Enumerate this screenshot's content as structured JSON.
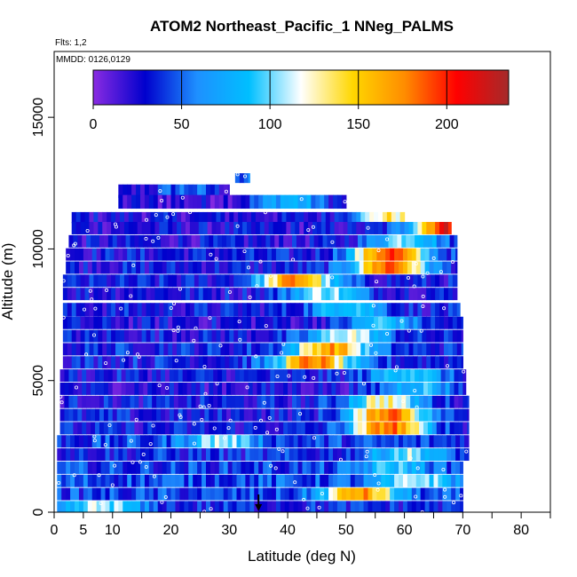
{
  "chart_data": {
    "type": "heatmap",
    "title": "ATOM2 Northeast_Pacific_1 NNeg_PALMS",
    "flights_label": "Flts: 1,2",
    "dates_label": "MMDD: 0126,0129",
    "xlabel": "Latitude (deg N)",
    "ylabel": "Altitude (m)",
    "xlim": [
      0,
      85
    ],
    "ylim": [
      0,
      17500
    ],
    "x_ticks": [
      0,
      5,
      10,
      20,
      30,
      40,
      50,
      60,
      70,
      80
    ],
    "x_minor_ticks": [
      15,
      25,
      35,
      45,
      55,
      65,
      75,
      85
    ],
    "y_ticks": [
      0,
      5000,
      10000,
      15000
    ],
    "colorbar": {
      "range": [
        0,
        235
      ],
      "ticks": [
        0,
        50,
        100,
        150,
        200
      ],
      "stops": [
        "#8a2be2",
        "#0000cd",
        "#1e90ff",
        "#00bfff",
        "#ffffff",
        "#ffd700",
        "#ff8c00",
        "#ff0000",
        "#a52a2a"
      ]
    },
    "bands": [
      {
        "alt": 12700,
        "h": 350,
        "lat": [
          31,
          33.5
        ],
        "peak_lat": 32,
        "base": 20,
        "peak": 45
      },
      {
        "alt": 12200,
        "h": 500,
        "lat": [
          11,
          30
        ],
        "peak_lat": 22,
        "base": 15,
        "peak": 50
      },
      {
        "alt": 11800,
        "h": 500,
        "lat": [
          11,
          50
        ],
        "peak_lat": 40,
        "base": 20,
        "peak": 80
      },
      {
        "alt": 11200,
        "h": 400,
        "lat": [
          3,
          60
        ],
        "peak_lat": 57,
        "base": 25,
        "peak": 135
      },
      {
        "alt": 10800,
        "h": 450,
        "lat": [
          3,
          68
        ],
        "peak_lat": 67,
        "base": 25,
        "peak": 210
      },
      {
        "alt": 10300,
        "h": 450,
        "lat": [
          2.5,
          69
        ],
        "peak_lat": 60,
        "base": 25,
        "peak": 110
      },
      {
        "alt": 9800,
        "h": 450,
        "lat": [
          2,
          69
        ],
        "peak_lat": 57,
        "base": 30,
        "peak": 195
      },
      {
        "alt": 9300,
        "h": 450,
        "lat": [
          2,
          69
        ],
        "peak_lat": 57,
        "base": 30,
        "peak": 190
      },
      {
        "alt": 8800,
        "h": 450,
        "lat": [
          1.5,
          69
        ],
        "peak_lat": 41,
        "base": 30,
        "peak": 175
      },
      {
        "alt": 8300,
        "h": 450,
        "lat": [
          1.5,
          69
        ],
        "peak_lat": 46,
        "base": 30,
        "peak": 110
      },
      {
        "alt": 7700,
        "h": 500,
        "lat": [
          1.5,
          69.5
        ],
        "peak_lat": 50,
        "base": 30,
        "peak": 100
      },
      {
        "alt": 7200,
        "h": 450,
        "lat": [
          1.5,
          70
        ],
        "peak_lat": 56,
        "base": 25,
        "peak": 90
      },
      {
        "alt": 6700,
        "h": 450,
        "lat": [
          1.5,
          70
        ],
        "peak_lat": 50,
        "base": 30,
        "peak": 120
      },
      {
        "alt": 6200,
        "h": 450,
        "lat": [
          1.5,
          70
        ],
        "peak_lat": 47,
        "base": 35,
        "peak": 170
      },
      {
        "alt": 5700,
        "h": 450,
        "lat": [
          1.5,
          70
        ],
        "peak_lat": 44,
        "base": 35,
        "peak": 180
      },
      {
        "alt": 5200,
        "h": 450,
        "lat": [
          1,
          70.5
        ],
        "peak_lat": 60,
        "base": 30,
        "peak": 100
      },
      {
        "alt": 4700,
        "h": 450,
        "lat": [
          1,
          70.5
        ],
        "peak_lat": 62,
        "base": 25,
        "peak": 90
      },
      {
        "alt": 4200,
        "h": 450,
        "lat": [
          1,
          71
        ],
        "peak_lat": 56,
        "base": 30,
        "peak": 130
      },
      {
        "alt": 3700,
        "h": 450,
        "lat": [
          1,
          71
        ],
        "peak_lat": 57,
        "base": 30,
        "peak": 190
      },
      {
        "alt": 3200,
        "h": 450,
        "lat": [
          1,
          71
        ],
        "peak_lat": 57,
        "base": 30,
        "peak": 185
      },
      {
        "alt": 2700,
        "h": 450,
        "lat": [
          0.5,
          71
        ],
        "peak_lat": 28,
        "base": 40,
        "peak": 110
      },
      {
        "alt": 2200,
        "h": 450,
        "lat": [
          0.5,
          71
        ],
        "peak_lat": 60,
        "base": 35,
        "peak": 105
      },
      {
        "alt": 1700,
        "h": 450,
        "lat": [
          0.5,
          70
        ],
        "peak_lat": 58,
        "base": 40,
        "peak": 90
      },
      {
        "alt": 1200,
        "h": 450,
        "lat": [
          0.5,
          70
        ],
        "peak_lat": 62,
        "base": 45,
        "peak": 110
      },
      {
        "alt": 700,
        "h": 450,
        "lat": [
          0.5,
          70
        ],
        "peak_lat": 52,
        "base": 40,
        "peak": 170
      },
      {
        "alt": 200,
        "h": 450,
        "lat": [
          0.5,
          70
        ],
        "peak_lat": 8,
        "base": 35,
        "peak": 110
      }
    ],
    "arrow_latitude": 35
  }
}
